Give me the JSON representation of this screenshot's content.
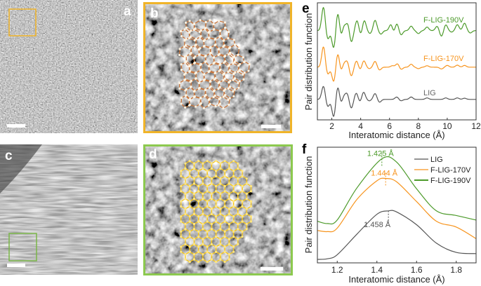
{
  "panels": {
    "a": {
      "label": "a",
      "frame_color": "#f0b429"
    },
    "b": {
      "label": "b",
      "frame_color": "#f0b429",
      "overlay_color": "#c8743a"
    },
    "c": {
      "label": "c",
      "frame_color": "#7ab648"
    },
    "d": {
      "label": "d",
      "frame_color": "#8cc94f",
      "overlay_color": "#f5c518"
    }
  },
  "chart_data": [
    {
      "panel_label": "e",
      "type": "line",
      "xlabel": "Interatomic distance (Å)",
      "ylabel": "Pair distribution function",
      "xlim": [
        1,
        12
      ],
      "xticks": [
        "2",
        "4",
        "6",
        "8",
        "10",
        "12"
      ],
      "ylim": [
        -0.7,
        3.3
      ],
      "model": "sum of gaussian peaks [position Å, amplitude a.u.] over a vertical offset, width 0.12 Å",
      "series": [
        {
          "name": "LIG",
          "color": "#555555",
          "offset": 0,
          "peaks": [
            [
              1.42,
              0.45
            ],
            [
              1.72,
              -0.25
            ],
            [
              2.13,
              -0.6
            ],
            [
              2.42,
              0.45
            ],
            [
              2.65,
              -0.2
            ],
            [
              2.8,
              0.15
            ],
            [
              3.05,
              0.2
            ],
            [
              3.35,
              -0.3
            ],
            [
              3.7,
              0.22
            ],
            [
              3.95,
              -0.1
            ],
            [
              4.2,
              0.25
            ],
            [
              4.6,
              -0.05
            ],
            [
              5.0,
              0.2
            ],
            [
              5.3,
              -0.1
            ],
            [
              6.5,
              0.08
            ],
            [
              6.8,
              -0.05
            ],
            [
              7.5,
              0.08
            ],
            [
              8.6,
              0.05
            ],
            [
              9.9,
              0.05
            ],
            [
              10.7,
              0.05
            ],
            [
              11.2,
              0.04
            ]
          ]
        },
        {
          "name": "F-LIG-170V",
          "color": "#f7941d",
          "offset": 1.1,
          "peaks": [
            [
              1.42,
              0.7
            ],
            [
              1.72,
              -0.25
            ],
            [
              2.13,
              -0.5
            ],
            [
              2.42,
              0.48
            ],
            [
              2.65,
              -0.2
            ],
            [
              2.8,
              0.15
            ],
            [
              3.05,
              0.2
            ],
            [
              3.35,
              -0.3
            ],
            [
              3.72,
              0.22
            ],
            [
              3.95,
              -0.1
            ],
            [
              4.22,
              0.22
            ],
            [
              4.6,
              -0.05
            ],
            [
              5.0,
              0.2
            ],
            [
              5.3,
              -0.1
            ],
            [
              6.2,
              0.05
            ],
            [
              6.55,
              0.12
            ],
            [
              6.8,
              -0.08
            ],
            [
              7.5,
              0.1
            ],
            [
              8.0,
              -0.05
            ],
            [
              8.6,
              0.05
            ],
            [
              9.6,
              -0.06
            ],
            [
              10.0,
              0.06
            ],
            [
              10.7,
              0.07
            ],
            [
              11.2,
              0.06
            ]
          ]
        },
        {
          "name": "F-LIG-190V",
          "color": "#4c9a2a",
          "offset": 2.35,
          "peaks": [
            [
              1.42,
              0.8
            ],
            [
              1.72,
              -0.3
            ],
            [
              2.13,
              -0.6
            ],
            [
              2.42,
              0.62
            ],
            [
              2.65,
              -0.25
            ],
            [
              2.82,
              0.2
            ],
            [
              3.1,
              0.25
            ],
            [
              3.35,
              -0.4
            ],
            [
              3.75,
              0.35
            ],
            [
              4.0,
              -0.15
            ],
            [
              4.25,
              0.35
            ],
            [
              4.65,
              -0.1
            ],
            [
              5.0,
              0.35
            ],
            [
              5.4,
              -0.12
            ],
            [
              6.1,
              0.22
            ],
            [
              6.3,
              -0.1
            ],
            [
              6.5,
              0.25
            ],
            [
              6.8,
              -0.15
            ],
            [
              7.5,
              0.15
            ],
            [
              8.0,
              -0.1
            ],
            [
              8.6,
              0.12
            ],
            [
              9.3,
              0.15
            ],
            [
              9.6,
              -0.2
            ],
            [
              9.9,
              0.2
            ],
            [
              10.3,
              -0.05
            ],
            [
              10.7,
              0.2
            ],
            [
              11.2,
              0.25
            ],
            [
              11.6,
              -0.08
            ]
          ]
        }
      ],
      "annotations": [
        "F-LIG-190V",
        "F-LIG-170V",
        "LIG"
      ]
    },
    {
      "panel_label": "f",
      "type": "line",
      "xlabel": "Interatomic distance (Å)",
      "ylabel": "Pair distribution function",
      "xlim": [
        1.1,
        1.9
      ],
      "xticks": [
        "1.2",
        "1.4",
        "1.6",
        "1.8"
      ],
      "ylim": [
        0,
        1
      ],
      "legend": {
        "position": "top-right",
        "entries": [
          "LIG",
          "F-LIG-170V",
          "F-LIG-190V"
        ]
      },
      "series": [
        {
          "name": "LIG",
          "color": "#555555",
          "peak_label": "1.458 Å",
          "peak_x": 1.458,
          "x": [
            1.1,
            1.15,
            1.2,
            1.3,
            1.4,
            1.458,
            1.5,
            1.6,
            1.7,
            1.8,
            1.9
          ],
          "y": [
            0.03,
            0.035,
            0.07,
            0.25,
            0.42,
            0.45,
            0.44,
            0.33,
            0.17,
            0.09,
            0.08
          ]
        },
        {
          "name": "F-LIG-170V",
          "color": "#f7941d",
          "peak_label": "1.444 Å",
          "peak_x": 1.444,
          "x": [
            1.1,
            1.15,
            1.2,
            1.3,
            1.4,
            1.444,
            1.5,
            1.6,
            1.7,
            1.8,
            1.9
          ],
          "y": [
            0.28,
            0.27,
            0.3,
            0.55,
            0.71,
            0.73,
            0.7,
            0.53,
            0.36,
            0.31,
            0.21
          ]
        },
        {
          "name": "F-LIG-190V",
          "color": "#4c9a2a",
          "peak_label": "1.425 Å",
          "peak_x": 1.425,
          "x": [
            1.1,
            1.15,
            1.2,
            1.3,
            1.425,
            1.5,
            1.6,
            1.7,
            1.8,
            1.9
          ],
          "y": [
            0.36,
            0.34,
            0.37,
            0.65,
            0.9,
            0.87,
            0.64,
            0.45,
            0.41,
            0.37
          ]
        }
      ]
    }
  ]
}
